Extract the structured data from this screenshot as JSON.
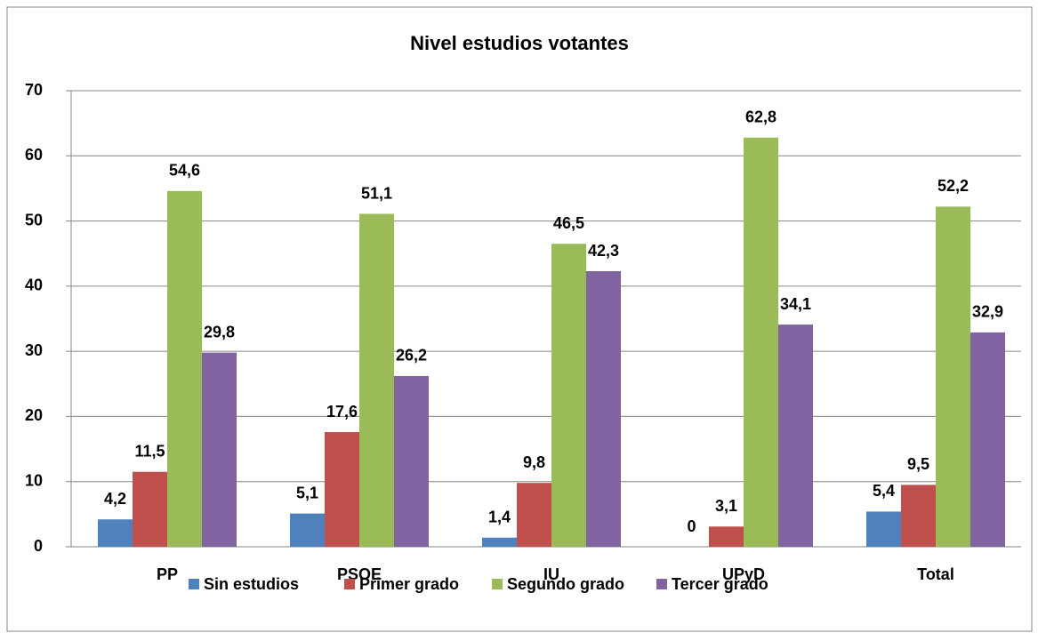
{
  "chart_data": {
    "type": "bar",
    "title": "Nivel estudios votantes",
    "categories": [
      "PP",
      "PSOE",
      "IU",
      "UPyD",
      "Total"
    ],
    "series": [
      {
        "name": "Sin estudios",
        "color": "#4f81bd",
        "values": [
          4.2,
          5.1,
          1.4,
          0,
          5.4
        ],
        "value_labels": [
          "4,2",
          "5,1",
          "1,4",
          "0",
          "5,4"
        ]
      },
      {
        "name": "Primer grado",
        "color": "#c0504d",
        "values": [
          11.5,
          17.6,
          9.8,
          3.1,
          9.5
        ],
        "value_labels": [
          "11,5",
          "17,6",
          "9,8",
          "3,1",
          "9,5"
        ]
      },
      {
        "name": "Segundo grado",
        "color": "#9bbb59",
        "values": [
          54.6,
          51.1,
          46.5,
          62.8,
          52.2
        ],
        "value_labels": [
          "54,6",
          "51,1",
          "46,5",
          "62,8",
          "52,2"
        ]
      },
      {
        "name": "Tercer grado",
        "color": "#8064a2",
        "values": [
          29.8,
          26.2,
          42.3,
          34.1,
          32.9
        ],
        "value_labels": [
          "29,8",
          "26,2",
          "42,3",
          "34,1",
          "32,9"
        ]
      }
    ],
    "ylim": [
      0,
      70
    ],
    "yticks": [
      0,
      10,
      20,
      30,
      40,
      50,
      60,
      70
    ],
    "grid": true,
    "legend": "bottom"
  }
}
